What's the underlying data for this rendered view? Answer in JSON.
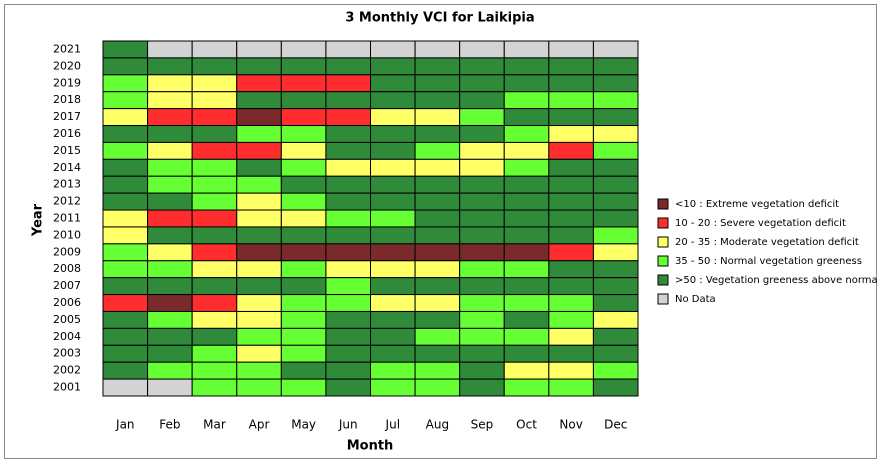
{
  "chart_data": {
    "type": "heatmap",
    "title": "3 Monthly VCI for Laikipia",
    "xlabel": "Month",
    "ylabel": "Year",
    "categories": [
      "Jan",
      "Feb",
      "Mar",
      "Apr",
      "May",
      "Jun",
      "Jul",
      "Aug",
      "Sep",
      "Oct",
      "Nov",
      "Dec"
    ],
    "rows": [
      "2021",
      "2020",
      "2019",
      "2018",
      "2017",
      "2016",
      "2015",
      "2014",
      "2013",
      "2012",
      "2011",
      "2010",
      "2009",
      "2008",
      "2007",
      "2006",
      "2005",
      "2004",
      "2003",
      "2002",
      "2001"
    ],
    "legend": [
      {
        "label": "<10 : Extreme vegetation deficit",
        "color": "#7a2a2a"
      },
      {
        "label": "10 - 20 : Severe vegetation deficit",
        "color": "#ff2d2d"
      },
      {
        "label": "20 - 35 : Moderate vegetation deficit",
        "color": "#ffff66"
      },
      {
        "label": "35 - 50 : Normal vegetation greeness",
        "color": "#66ff33"
      },
      {
        "label": ">50 : Vegetation greeness above norma",
        "color": "#2f8a3a"
      },
      {
        "label": "No Data",
        "color": "#d3d3d3"
      }
    ],
    "values": [
      [
        4,
        5,
        5,
        5,
        5,
        5,
        5,
        5,
        5,
        5,
        5,
        5
      ],
      [
        4,
        4,
        4,
        4,
        4,
        4,
        4,
        4,
        4,
        4,
        4,
        4
      ],
      [
        3,
        2,
        2,
        1,
        1,
        1,
        4,
        4,
        4,
        4,
        4,
        4
      ],
      [
        3,
        2,
        2,
        4,
        4,
        4,
        4,
        4,
        4,
        3,
        3,
        3
      ],
      [
        2,
        1,
        1,
        0,
        1,
        1,
        2,
        2,
        3,
        4,
        4,
        4
      ],
      [
        4,
        4,
        4,
        3,
        3,
        4,
        4,
        4,
        4,
        3,
        2,
        2
      ],
      [
        3,
        2,
        1,
        1,
        2,
        4,
        4,
        3,
        2,
        2,
        1,
        3
      ],
      [
        4,
        3,
        3,
        4,
        3,
        2,
        2,
        2,
        2,
        3,
        4,
        4
      ],
      [
        4,
        3,
        3,
        3,
        4,
        4,
        4,
        4,
        4,
        4,
        4,
        4
      ],
      [
        4,
        4,
        3,
        2,
        3,
        4,
        4,
        4,
        4,
        4,
        4,
        4
      ],
      [
        2,
        1,
        1,
        2,
        2,
        3,
        3,
        4,
        4,
        4,
        4,
        4
      ],
      [
        2,
        4,
        4,
        4,
        4,
        4,
        4,
        4,
        4,
        4,
        4,
        3
      ],
      [
        3,
        2,
        1,
        0,
        0,
        0,
        0,
        0,
        0,
        0,
        1,
        2
      ],
      [
        3,
        3,
        2,
        2,
        3,
        2,
        2,
        2,
        3,
        3,
        4,
        4
      ],
      [
        4,
        4,
        4,
        4,
        4,
        3,
        4,
        4,
        4,
        4,
        4,
        4
      ],
      [
        1,
        0,
        1,
        2,
        3,
        3,
        2,
        2,
        3,
        3,
        3,
        4
      ],
      [
        4,
        3,
        2,
        2,
        3,
        4,
        4,
        4,
        3,
        4,
        3,
        2
      ],
      [
        4,
        4,
        4,
        3,
        3,
        4,
        4,
        3,
        3,
        3,
        2,
        4
      ],
      [
        4,
        4,
        3,
        2,
        3,
        4,
        4,
        4,
        4,
        4,
        4,
        4
      ],
      [
        4,
        3,
        3,
        3,
        4,
        4,
        3,
        3,
        4,
        2,
        2,
        3
      ],
      [
        5,
        5,
        3,
        3,
        3,
        4,
        3,
        3,
        4,
        3,
        3,
        4
      ]
    ]
  }
}
